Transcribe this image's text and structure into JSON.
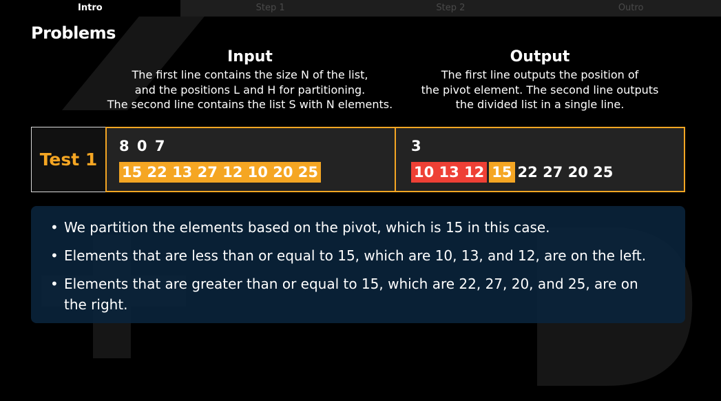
{
  "tabs": [
    {
      "label": "Intro",
      "active": true
    },
    {
      "label": "Step 1",
      "active": false
    },
    {
      "label": "Step 2",
      "active": false
    },
    {
      "label": "Outro",
      "active": false
    }
  ],
  "page_title": "Problems",
  "input": {
    "heading": "Input",
    "description": "The first line contains the size N of the list,\nand the positions L and H for partitioning.\nThe second line contains the list S with N elements."
  },
  "output": {
    "heading": "Output",
    "description": "The first line outputs the position of\nthe pivot element. The second line outputs\nthe divided list in a single line."
  },
  "test": {
    "label": "Test 1",
    "input_line1": "8 0 7",
    "input_line2": "15 22 13 27 12 10 20 25",
    "output_line1": "3",
    "output_left": "10 13 12",
    "output_pivot": "15",
    "output_right": "22 27 20 25"
  },
  "explanation": [
    "We partition the elements based on the pivot, which is 15 in this case.",
    "Elements that are less than or equal to 15, which are 10, 13, and 12, are on the left.",
    "Elements that are greater than or equal to 15, which are 22, 27, 20, and 25, are on the right."
  ],
  "bullet_symbol": "•",
  "colors": {
    "accent_orange": "#f5a623",
    "accent_red": "#ee4035",
    "panel_blue": "#0a243c"
  }
}
